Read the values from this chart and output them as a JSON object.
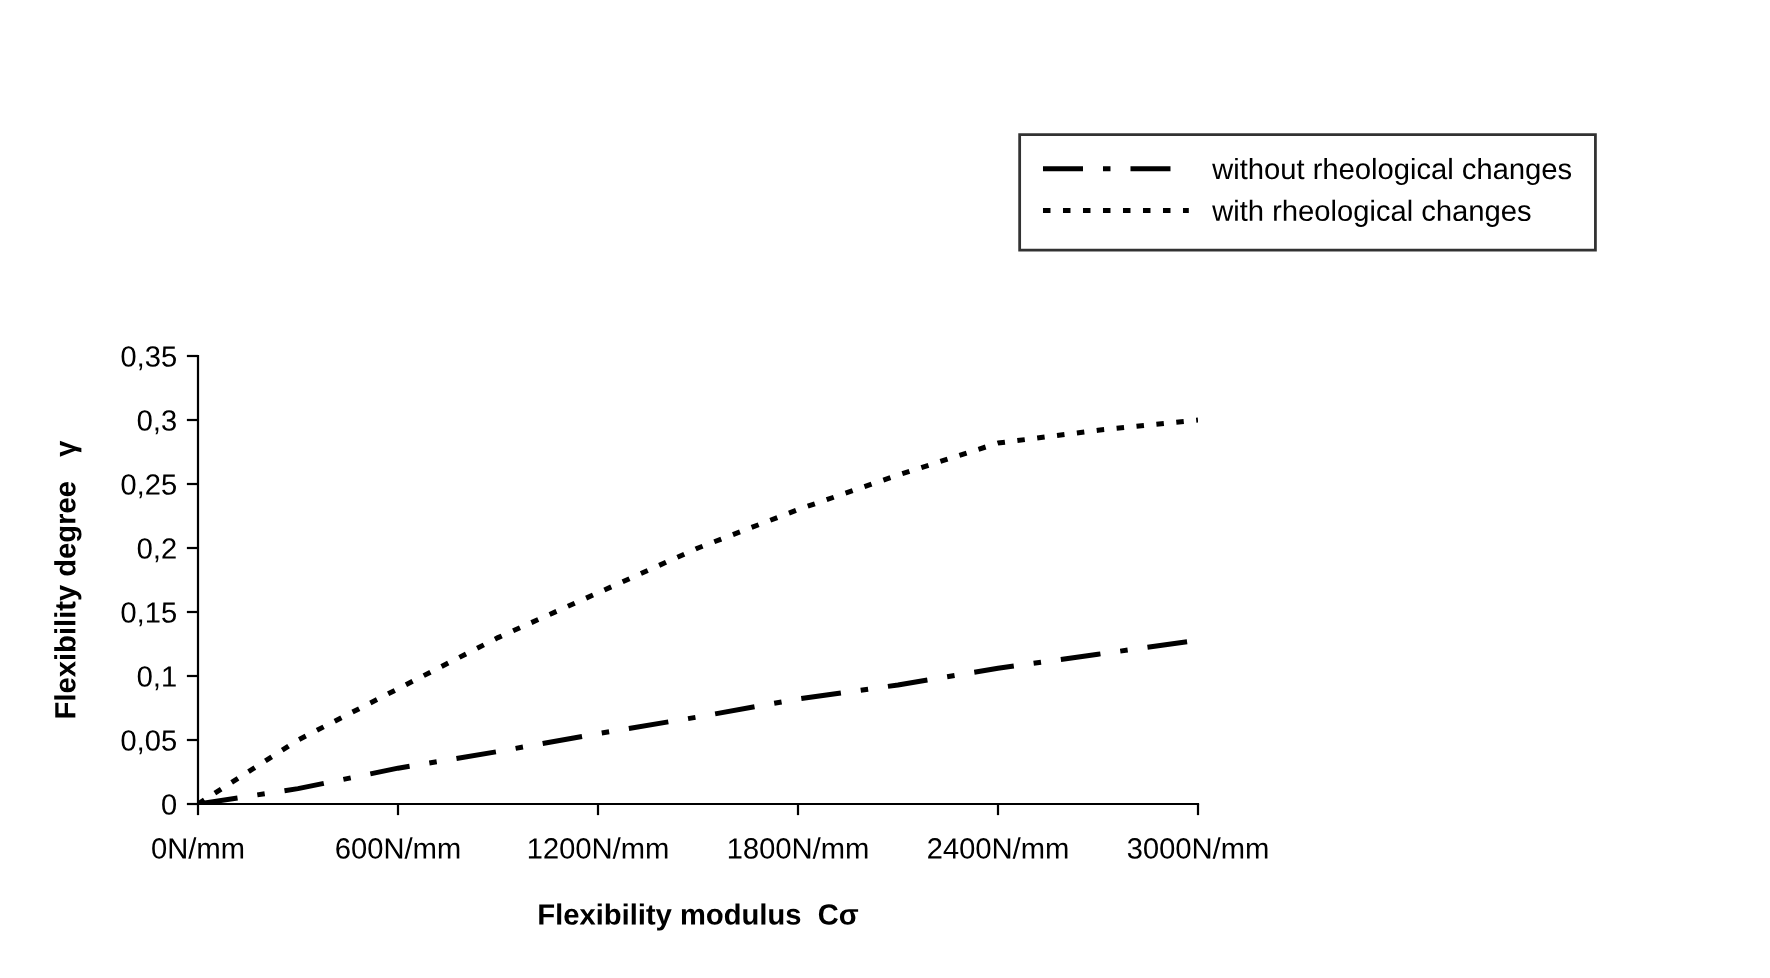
{
  "chart_data": {
    "type": "line",
    "xlabel": "Flexibility modulus  Cσ",
    "ylabel": "Flexibility degree   γ",
    "x": [
      0,
      300,
      600,
      900,
      1200,
      1500,
      1800,
      2100,
      2400,
      2700,
      3000
    ],
    "series": [
      {
        "name": "without rheological changes",
        "color": "#000000",
        "line_style": "dashdot",
        "values": [
          0,
          0.012,
          0.028,
          0.041,
          0.055,
          0.068,
          0.082,
          0.093,
          0.106,
          0.117,
          0.128
        ]
      },
      {
        "name": "with rheological changes",
        "color": "#000000",
        "line_style": "dotted",
        "values": [
          0,
          0.05,
          0.09,
          0.13,
          0.165,
          0.2,
          0.23,
          0.257,
          0.282,
          0.292,
          0.3
        ]
      }
    ],
    "xlim": [
      0,
      3000
    ],
    "ylim": [
      0,
      0.35
    ],
    "xticks": [
      {
        "value": 0,
        "label": "0N/mm"
      },
      {
        "value": 600,
        "label": "600N/mm"
      },
      {
        "value": 1200,
        "label": "1200N/mm"
      },
      {
        "value": 1800,
        "label": "1800N/mm"
      },
      {
        "value": 2400,
        "label": "2400N/mm"
      },
      {
        "value": 3000,
        "label": "3000N/mm"
      }
    ],
    "yticks": [
      {
        "value": 0,
        "label": "0"
      },
      {
        "value": 0.05,
        "label": "0,05"
      },
      {
        "value": 0.1,
        "label": "0,1"
      },
      {
        "value": 0.15,
        "label": "0,15"
      },
      {
        "value": 0.2,
        "label": "0,2"
      },
      {
        "value": 0.25,
        "label": "0,25"
      },
      {
        "value": 0.3,
        "label": "0,3"
      },
      {
        "value": 0.35,
        "label": "0,35"
      }
    ],
    "grid": false,
    "legend": "top right",
    "marker": "none"
  }
}
